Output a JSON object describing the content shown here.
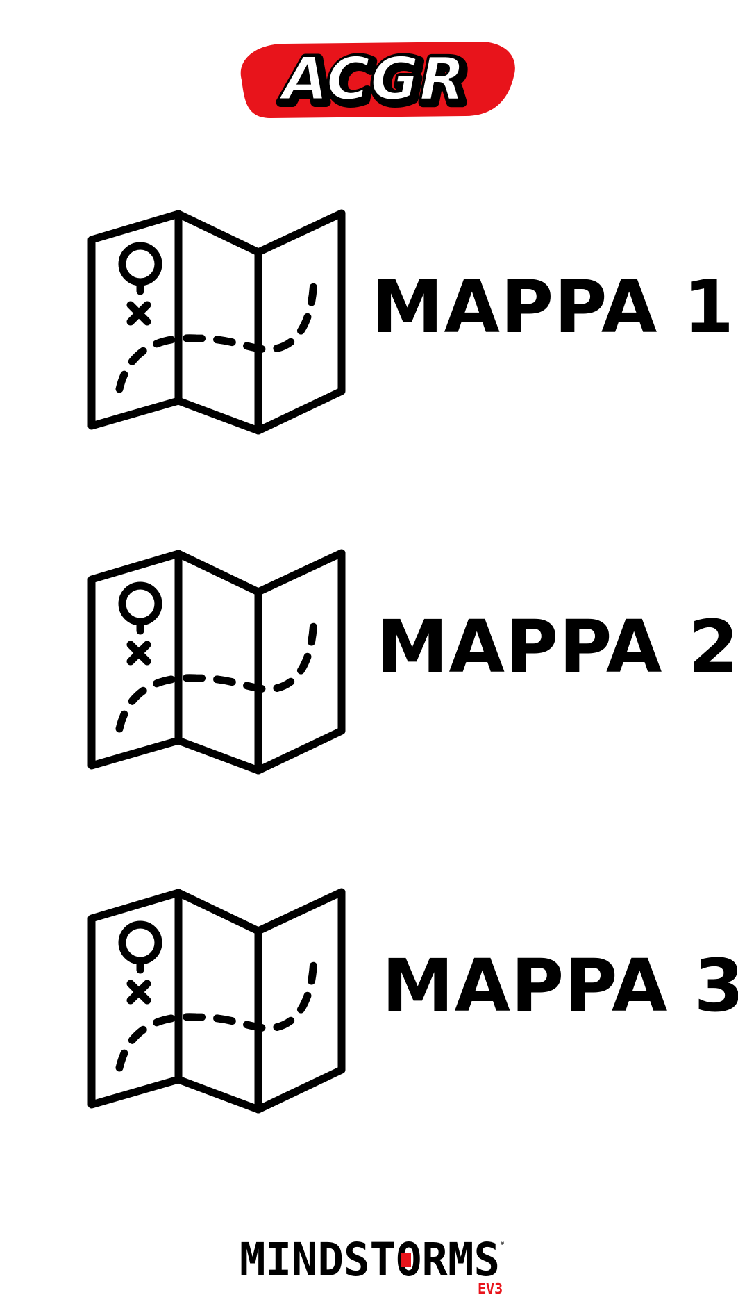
{
  "header": {
    "logo_text": "ACGR",
    "logo_icon": "acgr-logo",
    "logo_colors": {
      "outline": "#e8141b",
      "fill": "#ffffff",
      "stroke": "#000000"
    }
  },
  "maps": [
    {
      "label": "MAPPA 1",
      "icon": "folded-map-icon"
    },
    {
      "label": "MAPPA 2",
      "icon": "folded-map-icon"
    },
    {
      "label": "MAPPA 3",
      "icon": "folded-map-icon"
    }
  ],
  "footer": {
    "logo_text": "MINDSTORMS",
    "logo_subtext": "EV3",
    "logo_icon": "mindstorms-ev3-logo",
    "accent_color": "#e8141b"
  }
}
